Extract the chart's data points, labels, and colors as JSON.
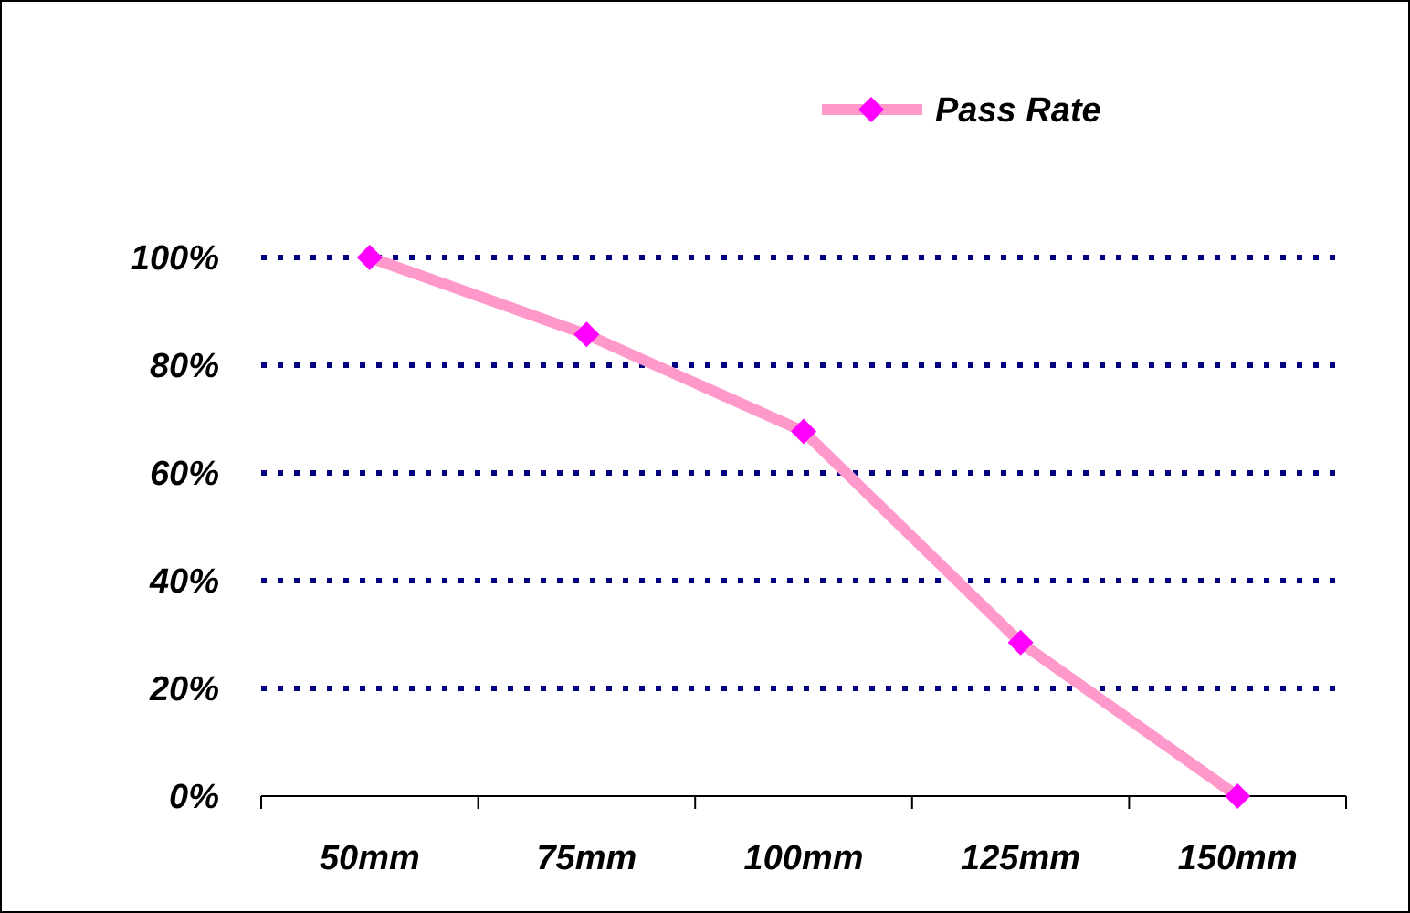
{
  "chart_data": {
    "type": "line",
    "categories": [
      "50mm",
      "75mm",
      "100mm",
      "125mm",
      "150mm"
    ],
    "series": [
      {
        "name": "Pass Rate",
        "color": "#ff99cc",
        "colors": [
          "#ff00ff",
          "#ff00ff",
          "#ff00ff",
          "#ff00ff",
          "#ff00ff"
        ],
        "values": [
          100,
          85.7,
          67.7,
          28.5,
          0
        ]
      }
    ],
    "ylim": [
      0,
      100
    ],
    "yticks": [
      {
        "value": 0,
        "label": "0%"
      },
      {
        "value": 20,
        "label": "20%"
      },
      {
        "value": 40,
        "label": "40%"
      },
      {
        "value": 60,
        "label": "60%"
      },
      {
        "value": 80,
        "label": "80%"
      },
      {
        "value": 100,
        "label": "100%"
      }
    ],
    "grid": "y",
    "legend": "top right",
    "marker": "diamond",
    "line_style": "solid"
  }
}
